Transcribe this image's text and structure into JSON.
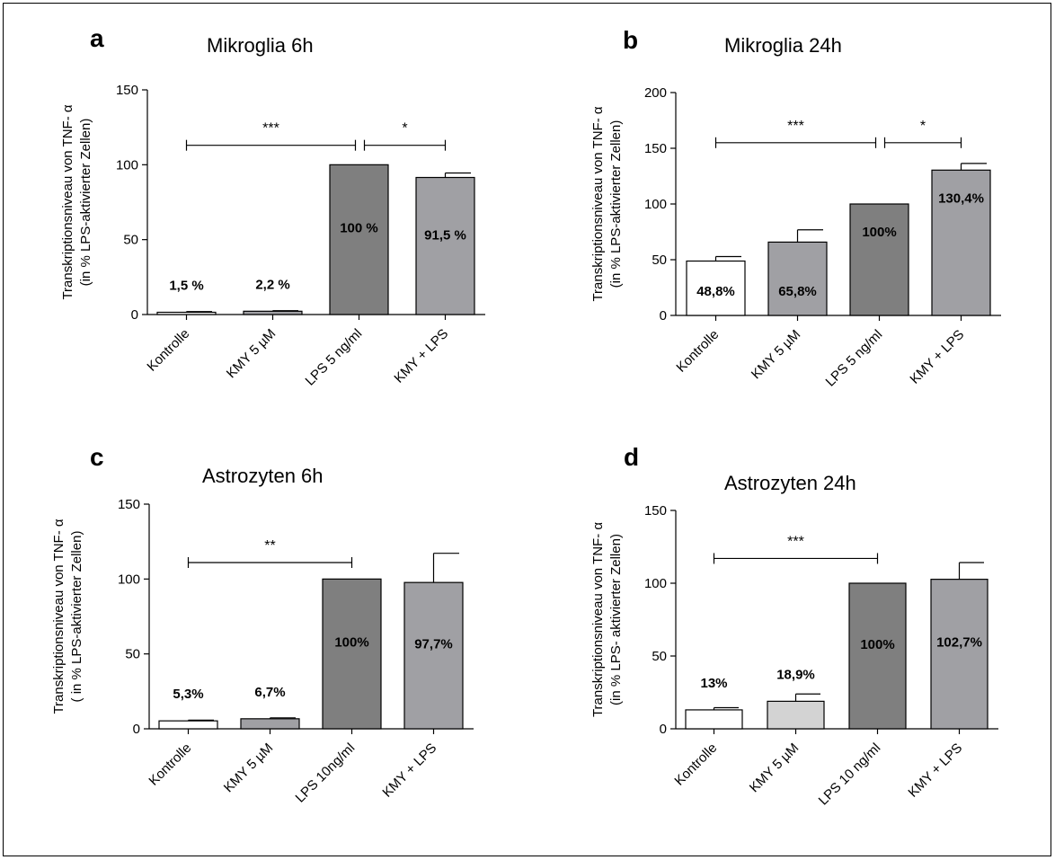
{
  "chart_data": [
    {
      "type": "bar",
      "letter": "a",
      "title": "Mikroglia 6h",
      "ylabel_line1": "Transkriptionsniveau von TNF- α",
      "ylabel_line2": "(in % LPS-aktivierter Zellen)",
      "ylim": [
        0,
        150
      ],
      "yticks": [
        "0",
        "50",
        "100",
        "150"
      ],
      "categories": [
        "Kontrolle",
        "KMY 5 µM",
        "LPS 5 ng/ml",
        "KMY + LPS"
      ],
      "values": [
        1.5,
        2.2,
        100,
        91.5
      ],
      "errors": [
        0.5,
        0.4,
        0,
        3
      ],
      "labels": [
        "1,5 %",
        "2,2 %",
        "100 %",
        "91,5 %"
      ],
      "colors": [
        "#ffffff",
        "#a0a0a4",
        "#7f7f7f",
        "#a0a0a4"
      ],
      "significance": [
        {
          "from": 0,
          "to": 2,
          "label": "***",
          "y": 113
        },
        {
          "from": 2,
          "to": 3,
          "label": "*",
          "y": 113
        }
      ]
    },
    {
      "type": "bar",
      "letter": "b",
      "title": "Mikroglia 24h",
      "ylabel_line1": "Transkriptionsniveau von TNF- α",
      "ylabel_line2": "(in % LPS-aktivierter Zellen)",
      "ylim": [
        0,
        200
      ],
      "yticks": [
        "0",
        "50",
        "100",
        "150",
        "200"
      ],
      "categories": [
        "Kontrolle",
        "KMY 5 µM",
        "LPS 5 ng/ml",
        "KMY + LPS"
      ],
      "values": [
        48.8,
        65.8,
        100,
        130.4
      ],
      "errors": [
        4,
        11,
        0,
        6
      ],
      "labels": [
        "48,8%",
        "65,8%",
        "100%",
        "130,4%"
      ],
      "colors": [
        "#ffffff",
        "#a0a0a4",
        "#7f7f7f",
        "#a0a0a4"
      ],
      "significance": [
        {
          "from": 0,
          "to": 2,
          "label": "***",
          "y": 155
        },
        {
          "from": 2,
          "to": 3,
          "label": "*",
          "y": 155
        }
      ]
    },
    {
      "type": "bar",
      "letter": "c",
      "title": "Astrozyten 6h",
      "ylabel_line1": "Transkriptionsniveau von TNF- α",
      "ylabel_line2": "( in % LPS-aktivierter Zellen)",
      "ylim": [
        0,
        150
      ],
      "yticks": [
        "0",
        "50",
        "100",
        "150"
      ],
      "categories": [
        "Kontrolle",
        "KMY 5 µM",
        "LPS 10ng/ml",
        "KMY + LPS"
      ],
      "values": [
        5.3,
        6.7,
        100,
        97.7
      ],
      "errors": [
        0.5,
        0.6,
        0,
        19.5
      ],
      "labels": [
        "5,3%",
        "6,7%",
        "100%",
        "97,7%"
      ],
      "colors": [
        "#ffffff",
        "#a0a0a4",
        "#7f7f7f",
        "#a0a0a4"
      ],
      "significance": [
        {
          "from": 0,
          "to": 2,
          "label": "**",
          "y": 111
        }
      ]
    },
    {
      "type": "bar",
      "letter": "d",
      "title": "Astrozyten 24h",
      "ylabel_line1": "Transkriptionsniveau von TNF- α",
      "ylabel_line2": "(in % LPS- aktivierter Zellen)",
      "ylim": [
        0,
        150
      ],
      "yticks": [
        "0",
        "50",
        "100",
        "150"
      ],
      "categories": [
        "Kontrolle",
        "KMY 5 µM",
        "LPS 10 ng/ml",
        "KMY + LPS"
      ],
      "values": [
        13,
        18.9,
        100,
        102.7
      ],
      "errors": [
        1.5,
        5,
        0,
        11.5
      ],
      "labels": [
        "13%",
        "18,9%",
        "100%",
        "102,7%"
      ],
      "colors": [
        "#ffffff",
        "#d3d3d3",
        "#7f7f7f",
        "#a0a0a4"
      ],
      "significance": [
        {
          "from": 0,
          "to": 2,
          "label": "***",
          "y": 117
        }
      ]
    }
  ]
}
